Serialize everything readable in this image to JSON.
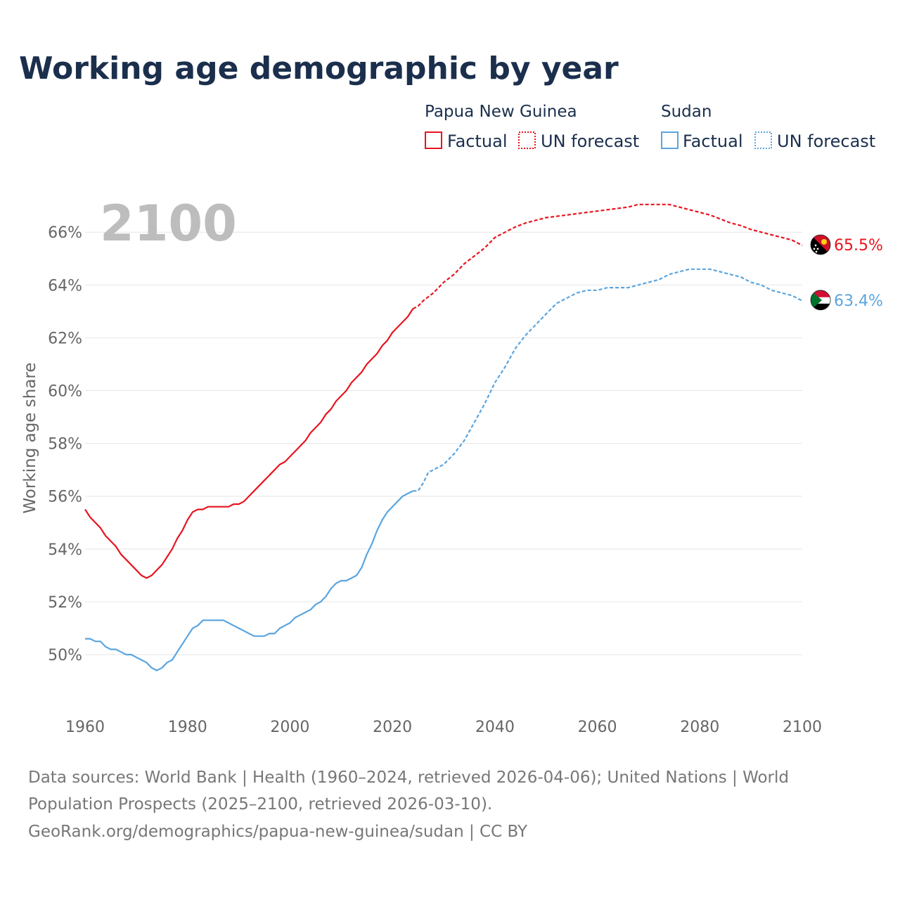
{
  "title": "Working age demographic by year",
  "current_year_label": "2100",
  "legend": {
    "groups": [
      {
        "name": "Papua New Guinea",
        "color": "#e8141f",
        "factual_label": "Factual",
        "forecast_label": "UN forecast"
      },
      {
        "name": "Sudan",
        "color": "#5aa5e0",
        "factual_label": "Factual",
        "forecast_label": "UN forecast"
      }
    ]
  },
  "source": {
    "line1": "Data sources: World Bank | Health (1960–2024, retrieved 2026-04-06); United Nations | World",
    "line2": "Population Prospects (2025–2100, retrieved 2026-03-10).",
    "line3": "GeoRank.org/demographics/papua-new-guinea/sudan | CC BY"
  },
  "chart_data": {
    "type": "line",
    "title": "Working age demographic by year",
    "xlabel": "",
    "ylabel": "Working age share",
    "xlim": [
      1960,
      2100
    ],
    "ylim": [
      48,
      67.5
    ],
    "x_ticks": [
      1960,
      1980,
      2000,
      2020,
      2040,
      2060,
      2080,
      2100
    ],
    "y_ticks": [
      50,
      52,
      54,
      56,
      58,
      60,
      62,
      64,
      66
    ],
    "y_tick_labels": [
      "50%",
      "52%",
      "54%",
      "56%",
      "58%",
      "60%",
      "62%",
      "64%",
      "66%"
    ],
    "grid": true,
    "factual_range": [
      1960,
      2024
    ],
    "forecast_range": [
      2024,
      2100
    ],
    "series": [
      {
        "name": "Papua New Guinea",
        "color": "#e8141f",
        "end_label": "65.5%",
        "flag": "papua-new-guinea-flag-icon",
        "points": [
          [
            1960,
            55.5
          ],
          [
            1961,
            55.2
          ],
          [
            1962,
            55.0
          ],
          [
            1963,
            54.8
          ],
          [
            1964,
            54.5
          ],
          [
            1965,
            54.3
          ],
          [
            1966,
            54.1
          ],
          [
            1967,
            53.8
          ],
          [
            1968,
            53.6
          ],
          [
            1969,
            53.4
          ],
          [
            1970,
            53.2
          ],
          [
            1971,
            53.0
          ],
          [
            1972,
            52.9
          ],
          [
            1973,
            53.0
          ],
          [
            1974,
            53.2
          ],
          [
            1975,
            53.4
          ],
          [
            1976,
            53.7
          ],
          [
            1977,
            54.0
          ],
          [
            1978,
            54.4
          ],
          [
            1979,
            54.7
          ],
          [
            1980,
            55.1
          ],
          [
            1981,
            55.4
          ],
          [
            1982,
            55.5
          ],
          [
            1983,
            55.5
          ],
          [
            1984,
            55.6
          ],
          [
            1985,
            55.6
          ],
          [
            1986,
            55.6
          ],
          [
            1987,
            55.6
          ],
          [
            1988,
            55.6
          ],
          [
            1989,
            55.7
          ],
          [
            1990,
            55.7
          ],
          [
            1991,
            55.8
          ],
          [
            1992,
            56.0
          ],
          [
            1993,
            56.2
          ],
          [
            1994,
            56.4
          ],
          [
            1995,
            56.6
          ],
          [
            1996,
            56.8
          ],
          [
            1997,
            57.0
          ],
          [
            1998,
            57.2
          ],
          [
            1999,
            57.3
          ],
          [
            2000,
            57.5
          ],
          [
            2001,
            57.7
          ],
          [
            2002,
            57.9
          ],
          [
            2003,
            58.1
          ],
          [
            2004,
            58.4
          ],
          [
            2005,
            58.6
          ],
          [
            2006,
            58.8
          ],
          [
            2007,
            59.1
          ],
          [
            2008,
            59.3
          ],
          [
            2009,
            59.6
          ],
          [
            2010,
            59.8
          ],
          [
            2011,
            60.0
          ],
          [
            2012,
            60.3
          ],
          [
            2013,
            60.5
          ],
          [
            2014,
            60.7
          ],
          [
            2015,
            61.0
          ],
          [
            2016,
            61.2
          ],
          [
            2017,
            61.4
          ],
          [
            2018,
            61.7
          ],
          [
            2019,
            61.9
          ],
          [
            2020,
            62.2
          ],
          [
            2021,
            62.4
          ],
          [
            2022,
            62.6
          ],
          [
            2023,
            62.8
          ],
          [
            2024,
            63.1
          ],
          [
            2025,
            63.2
          ],
          [
            2026,
            63.4
          ],
          [
            2028,
            63.7
          ],
          [
            2030,
            64.1
          ],
          [
            2032,
            64.4
          ],
          [
            2034,
            64.8
          ],
          [
            2036,
            65.1
          ],
          [
            2038,
            65.4
          ],
          [
            2040,
            65.8
          ],
          [
            2042,
            66.0
          ],
          [
            2044,
            66.2
          ],
          [
            2046,
            66.35
          ],
          [
            2048,
            66.45
          ],
          [
            2050,
            66.55
          ],
          [
            2052,
            66.6
          ],
          [
            2054,
            66.65
          ],
          [
            2056,
            66.7
          ],
          [
            2058,
            66.75
          ],
          [
            2060,
            66.8
          ],
          [
            2062,
            66.85
          ],
          [
            2064,
            66.9
          ],
          [
            2066,
            66.95
          ],
          [
            2068,
            67.05
          ],
          [
            2070,
            67.05
          ],
          [
            2072,
            67.05
          ],
          [
            2074,
            67.05
          ],
          [
            2076,
            66.95
          ],
          [
            2078,
            66.85
          ],
          [
            2080,
            66.75
          ],
          [
            2082,
            66.65
          ],
          [
            2084,
            66.5
          ],
          [
            2086,
            66.35
          ],
          [
            2088,
            66.25
          ],
          [
            2090,
            66.1
          ],
          [
            2092,
            66.0
          ],
          [
            2094,
            65.9
          ],
          [
            2096,
            65.8
          ],
          [
            2098,
            65.7
          ],
          [
            2100,
            65.5
          ]
        ]
      },
      {
        "name": "Sudan",
        "color": "#5aa5e0",
        "end_label": "63.4%",
        "flag": "sudan-flag-icon",
        "points": [
          [
            1960,
            50.6
          ],
          [
            1961,
            50.6
          ],
          [
            1962,
            50.5
          ],
          [
            1963,
            50.5
          ],
          [
            1964,
            50.3
          ],
          [
            1965,
            50.2
          ],
          [
            1966,
            50.2
          ],
          [
            1967,
            50.1
          ],
          [
            1968,
            50.0
          ],
          [
            1969,
            50.0
          ],
          [
            1970,
            49.9
          ],
          [
            1971,
            49.8
          ],
          [
            1972,
            49.7
          ],
          [
            1973,
            49.5
          ],
          [
            1974,
            49.4
          ],
          [
            1975,
            49.5
          ],
          [
            1976,
            49.7
          ],
          [
            1977,
            49.8
          ],
          [
            1978,
            50.1
          ],
          [
            1979,
            50.4
          ],
          [
            1980,
            50.7
          ],
          [
            1981,
            51.0
          ],
          [
            1982,
            51.1
          ],
          [
            1983,
            51.3
          ],
          [
            1984,
            51.3
          ],
          [
            1985,
            51.3
          ],
          [
            1986,
            51.3
          ],
          [
            1987,
            51.3
          ],
          [
            1988,
            51.2
          ],
          [
            1989,
            51.1
          ],
          [
            1990,
            51.0
          ],
          [
            1991,
            50.9
          ],
          [
            1992,
            50.8
          ],
          [
            1993,
            50.7
          ],
          [
            1994,
            50.7
          ],
          [
            1995,
            50.7
          ],
          [
            1996,
            50.8
          ],
          [
            1997,
            50.8
          ],
          [
            1998,
            51.0
          ],
          [
            1999,
            51.1
          ],
          [
            2000,
            51.2
          ],
          [
            2001,
            51.4
          ],
          [
            2002,
            51.5
          ],
          [
            2003,
            51.6
          ],
          [
            2004,
            51.7
          ],
          [
            2005,
            51.9
          ],
          [
            2006,
            52.0
          ],
          [
            2007,
            52.2
          ],
          [
            2008,
            52.5
          ],
          [
            2009,
            52.7
          ],
          [
            2010,
            52.8
          ],
          [
            2011,
            52.8
          ],
          [
            2012,
            52.9
          ],
          [
            2013,
            53.0
          ],
          [
            2014,
            53.3
          ],
          [
            2015,
            53.8
          ],
          [
            2016,
            54.2
          ],
          [
            2017,
            54.7
          ],
          [
            2018,
            55.1
          ],
          [
            2019,
            55.4
          ],
          [
            2020,
            55.6
          ],
          [
            2021,
            55.8
          ],
          [
            2022,
            56.0
          ],
          [
            2023,
            56.1
          ],
          [
            2024,
            56.2
          ],
          [
            2025,
            56.2
          ],
          [
            2026,
            56.5
          ],
          [
            2027,
            56.9
          ],
          [
            2028,
            57.0
          ],
          [
            2030,
            57.2
          ],
          [
            2032,
            57.6
          ],
          [
            2034,
            58.1
          ],
          [
            2036,
            58.8
          ],
          [
            2038,
            59.5
          ],
          [
            2040,
            60.3
          ],
          [
            2042,
            60.9
          ],
          [
            2044,
            61.6
          ],
          [
            2046,
            62.1
          ],
          [
            2048,
            62.5
          ],
          [
            2050,
            62.9
          ],
          [
            2052,
            63.3
          ],
          [
            2054,
            63.5
          ],
          [
            2056,
            63.7
          ],
          [
            2058,
            63.8
          ],
          [
            2060,
            63.8
          ],
          [
            2062,
            63.9
          ],
          [
            2064,
            63.9
          ],
          [
            2066,
            63.9
          ],
          [
            2068,
            64.0
          ],
          [
            2070,
            64.1
          ],
          [
            2072,
            64.2
          ],
          [
            2074,
            64.4
          ],
          [
            2076,
            64.5
          ],
          [
            2078,
            64.6
          ],
          [
            2080,
            64.6
          ],
          [
            2082,
            64.6
          ],
          [
            2084,
            64.5
          ],
          [
            2086,
            64.4
          ],
          [
            2088,
            64.3
          ],
          [
            2090,
            64.1
          ],
          [
            2092,
            64.0
          ],
          [
            2094,
            63.8
          ],
          [
            2096,
            63.7
          ],
          [
            2098,
            63.6
          ],
          [
            2100,
            63.4
          ]
        ]
      }
    ]
  }
}
